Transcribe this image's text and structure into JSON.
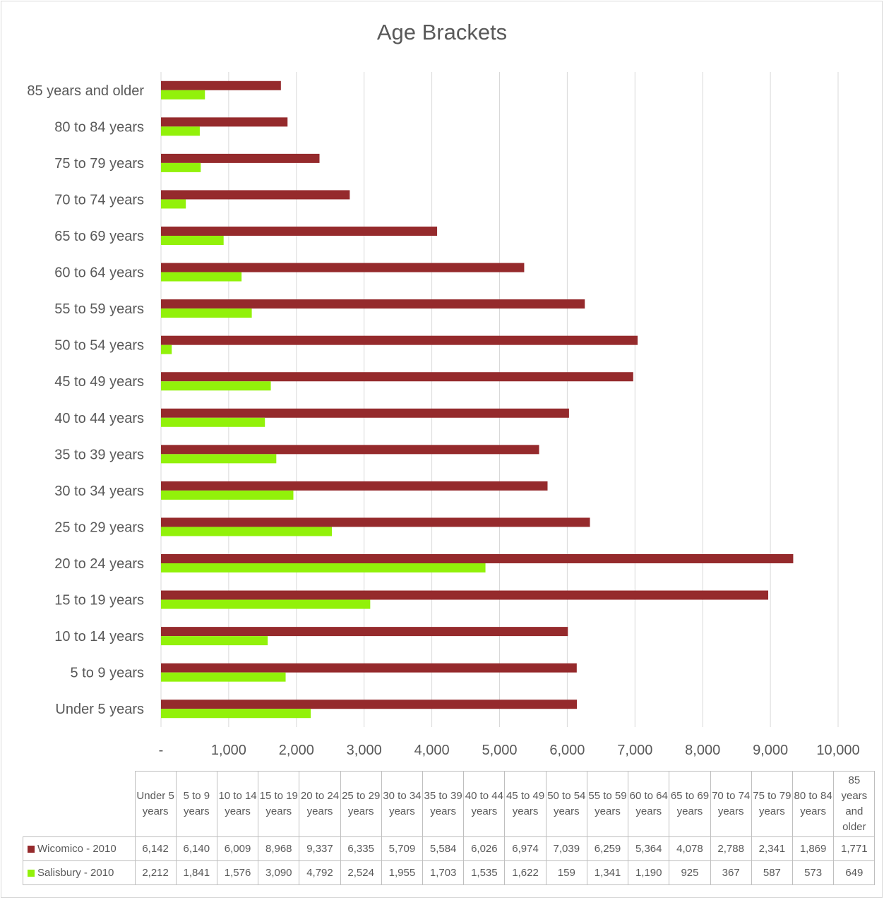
{
  "chart_data": {
    "type": "bar",
    "orientation": "horizontal",
    "title": "Age Brackets",
    "categories": [
      "Under 5 years",
      "5 to 9 years",
      "10 to 14 years",
      "15 to 19 years",
      "20 to 24 years",
      "25 to 29 years",
      "30 to 34 years",
      "35 to 39 years",
      "40  to 44 years",
      "45 to 49 years",
      "50 to 54 years",
      "55 to 59 years",
      "60 to 64 years",
      "65 to 69 years",
      "70  to 74 years",
      "75 to 79 years",
      "80 to 84 years",
      "85 years and older"
    ],
    "series": [
      {
        "name": "Wicomico - 2010",
        "color": "#952a2c",
        "values": [
          6142,
          6140,
          6009,
          8968,
          9337,
          6335,
          5709,
          5584,
          6026,
          6974,
          7039,
          6259,
          5364,
          4078,
          2788,
          2341,
          1869,
          1771
        ]
      },
      {
        "name": "Salisbury - 2010",
        "color": "#92f10a",
        "values": [
          2212,
          1841,
          1576,
          3090,
          4792,
          2524,
          1955,
          1703,
          1535,
          1622,
          159,
          1341,
          1190,
          925,
          367,
          587,
          573,
          649
        ]
      }
    ],
    "xlim": [
      0,
      10000
    ],
    "x_ticks": [
      0,
      1000,
      2000,
      3000,
      4000,
      5000,
      6000,
      7000,
      8000,
      9000,
      10000
    ],
    "x_tick_labels": [
      "-",
      "1,000",
      "2,000",
      "3,000",
      "4,000",
      "5,000",
      "6,000",
      "7,000",
      "8,000",
      "9,000",
      "10,000"
    ],
    "grid": true,
    "legend": "data-table",
    "data_table": {
      "headers": [
        "Under 5 years",
        "5 to 9 years",
        "10 to 14 years",
        "15 to 19 years",
        "20 to 24 years",
        "25 to 29 years",
        "30 to 34 years",
        "35 to 39 years",
        "40  to 44 years",
        "45 to 49 years",
        "50 to 54 years",
        "55 to 59 years",
        "60 to 64 years",
        "65 to 69 years",
        "70  to 74 years",
        "75 to 79 years",
        "80 to 84 years",
        "85 years and older"
      ],
      "rows": [
        {
          "label": "Wicomico - 2010",
          "cells": [
            "6,142",
            "6,140",
            "6,009",
            "8,968",
            "9,337",
            "6,335",
            "5,709",
            "5,584",
            "6,026",
            "6,974",
            "7,039",
            "6,259",
            "5,364",
            "4,078",
            "2,788",
            "2,341",
            "1,869",
            "1,771"
          ]
        },
        {
          "label": "Salisbury - 2010",
          "cells": [
            "2,212",
            "1,841",
            "1,576",
            "3,090",
            "4,792",
            "2,524",
            "1,955",
            "1,703",
            "1,535",
            "1,622",
            "159",
            "1,341",
            "1,190",
            "925",
            "367",
            "587",
            "573",
            "649"
          ]
        }
      ]
    }
  }
}
